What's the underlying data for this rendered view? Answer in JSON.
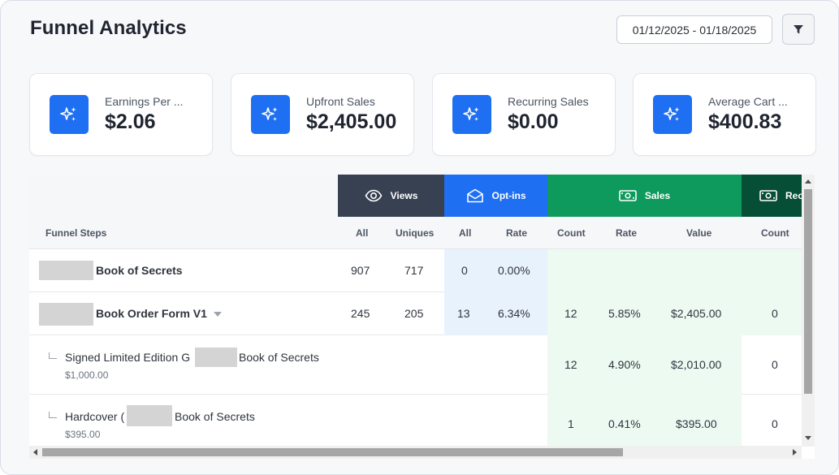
{
  "page": {
    "title": "Funnel Analytics"
  },
  "toolbar": {
    "date_range": "01/12/2025 - 01/18/2025",
    "filter_icon": "filter-icon"
  },
  "kpis": [
    {
      "label": "Earnings Per ...",
      "value": "$2.06",
      "icon": "sparkles-icon"
    },
    {
      "label": "Upfront Sales",
      "value": "$2,405.00",
      "icon": "sparkles-icon"
    },
    {
      "label": "Recurring Sales",
      "value": "$0.00",
      "icon": "sparkles-icon"
    },
    {
      "label": "Average Cart ...",
      "value": "$400.83",
      "icon": "sparkles-icon"
    }
  ],
  "table": {
    "groups": [
      {
        "label": "Views",
        "icon": "eye-icon",
        "color": "#374151"
      },
      {
        "label": "Opt-ins",
        "icon": "envelope-open-icon",
        "color": "#1f6ff2"
      },
      {
        "label": "Sales",
        "icon": "money-icon",
        "color": "#0e9a5c"
      },
      {
        "label": "Rec",
        "icon": "money-icon",
        "color": "#064e35"
      }
    ],
    "columns": {
      "step": "Funnel Steps",
      "views_all": "All",
      "views_uniques": "Uniques",
      "optins_all": "All",
      "optins_rate": "Rate",
      "sales_count": "Count",
      "sales_rate": "Rate",
      "sales_value": "Value",
      "rec_count": "Count"
    },
    "rows": [
      {
        "name": "Book of Secrets",
        "views_all": "907",
        "views_uniques": "717",
        "optins_all": "0",
        "optins_rate": "0.00%",
        "sales_count": "",
        "sales_rate": "",
        "sales_value": "",
        "rec_count": ""
      },
      {
        "name": "Book Order Form V1",
        "views_all": "245",
        "views_uniques": "205",
        "optins_all": "13",
        "optins_rate": "6.34%",
        "sales_count": "12",
        "sales_rate": "5.85%",
        "sales_value": "$2,405.00",
        "rec_count": "0"
      },
      {
        "name_a": "Signed Limited Edition G",
        "name_b": "Book of Secrets",
        "price": "$1,000.00",
        "sales_count": "12",
        "sales_rate": "4.90%",
        "sales_value": "$2,010.00",
        "rec_count": "0"
      },
      {
        "name_a": "Hardcover (",
        "name_b": "Book of Secrets",
        "price": "$395.00",
        "sales_count": "1",
        "sales_rate": "0.41%",
        "sales_value": "$395.00",
        "rec_count": "0"
      }
    ]
  }
}
